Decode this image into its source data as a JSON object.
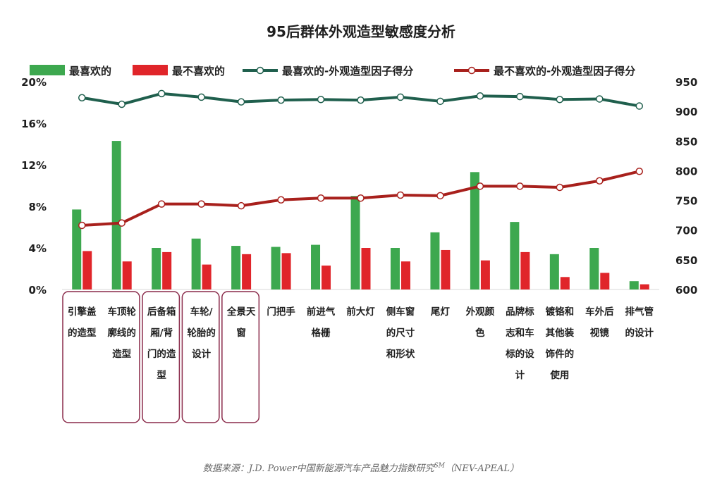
{
  "chart_data": {
    "type": "bar",
    "title": "95后群体外观造型敏感度分析",
    "categories": [
      [
        "引擎盖",
        "的造型"
      ],
      [
        "车顶轮",
        "廓线的",
        "造型"
      ],
      [
        "后备箱",
        "厢/背",
        "门的造",
        "型"
      ],
      [
        "车轮/",
        "轮胎的",
        "设计"
      ],
      [
        "全景天",
        "窗"
      ],
      [
        "门把手"
      ],
      [
        "前进气",
        "格栅"
      ],
      [
        "前大灯"
      ],
      [
        "侧车窗",
        "的尺寸",
        "和形状"
      ],
      [
        "尾灯"
      ],
      [
        "外观颜",
        "色"
      ],
      [
        "品牌标",
        "志和车",
        "标的设",
        "计"
      ],
      [
        "镀铬和",
        "其他装",
        "饰件的",
        "使用"
      ],
      [
        "车外后",
        "视镜"
      ],
      [
        "排气管",
        "的设计"
      ]
    ],
    "highlighted_groups": [
      [
        0,
        1
      ],
      [
        2,
        2
      ],
      [
        3,
        3
      ],
      [
        4,
        4
      ]
    ],
    "series": [
      {
        "name": "最喜欢的",
        "kind": "bar",
        "axis": "left",
        "color": "#3da84f",
        "values": [
          7.7,
          14.3,
          4.0,
          4.9,
          4.2,
          4.1,
          4.3,
          9.0,
          4.0,
          5.5,
          11.3,
          6.5,
          3.4,
          4.0,
          0.8
        ]
      },
      {
        "name": "最不喜欢的",
        "kind": "bar",
        "axis": "right-none",
        "color": "#e0252a",
        "values": [
          3.7,
          2.7,
          3.6,
          2.4,
          3.4,
          3.5,
          2.3,
          4.0,
          2.7,
          3.8,
          2.8,
          3.6,
          1.2,
          1.6,
          0.5
        ]
      },
      {
        "name": "最喜欢的-外观造型因子得分",
        "kind": "line",
        "axis": "right",
        "color": "#1f5f4d",
        "values": [
          923,
          912,
          930,
          924,
          916,
          919,
          920,
          919,
          924,
          917,
          926,
          925,
          920,
          921,
          909
        ]
      },
      {
        "name": "最不喜欢的-外观造型因子得分",
        "kind": "line",
        "axis": "right",
        "color": "#a8201c",
        "values": [
          708,
          712,
          744,
          744,
          741,
          751,
          754,
          754,
          759,
          758,
          774,
          774,
          772,
          783,
          799
        ]
      }
    ],
    "y_left": {
      "min": 0,
      "max": 20,
      "ticks": [
        "0%",
        "4%",
        "8%",
        "12%",
        "16%",
        "20%"
      ],
      "tick_values": [
        0,
        4,
        8,
        12,
        16,
        20
      ]
    },
    "y_right": {
      "min": 600,
      "max": 950,
      "ticks": [
        "600",
        "650",
        "700",
        "750",
        "800",
        "850",
        "900",
        "950"
      ],
      "tick_values": [
        600,
        650,
        700,
        750,
        800,
        850,
        900,
        950
      ]
    },
    "legend_position": "top",
    "grid": false
  },
  "source": {
    "prefix": "数据来源：J.D. Power中国新能源汽车产品魅力指数研究",
    "sup": "SM",
    "suffix": "（NEV-APEAL）"
  }
}
